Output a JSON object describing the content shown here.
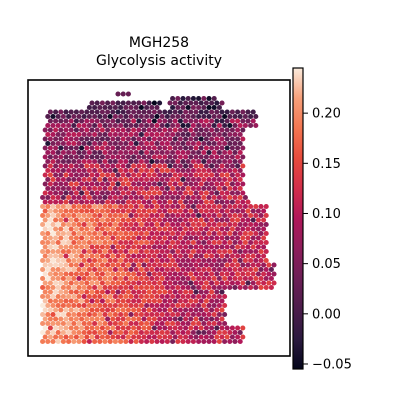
{
  "chart_data": {
    "type": "heatmap",
    "subtype": "spatial-spot-map",
    "title": "MGH258",
    "subtitle": "Glycolysis activity",
    "xlabel": "",
    "ylabel": "",
    "colorbar": {
      "colormap": "rocket",
      "range": [
        -0.055,
        0.245
      ],
      "ticks": [
        -0.05,
        0.0,
        0.05,
        0.1,
        0.15,
        0.2
      ],
      "tick_labels": [
        "−0.05",
        "0.00",
        "0.05",
        "0.10",
        "0.15",
        "0.20"
      ]
    },
    "regions": [
      {
        "area": "top edge",
        "typical_value": -0.02
      },
      {
        "area": "upper tissue",
        "typical_value": 0.06
      },
      {
        "area": "middle band",
        "typical_value": 0.1
      },
      {
        "area": "lower-left",
        "typical_value": 0.17
      },
      {
        "area": "lower-right",
        "typical_value": 0.11
      },
      {
        "area": "right protrusion",
        "typical_value": 0.12
      }
    ]
  }
}
